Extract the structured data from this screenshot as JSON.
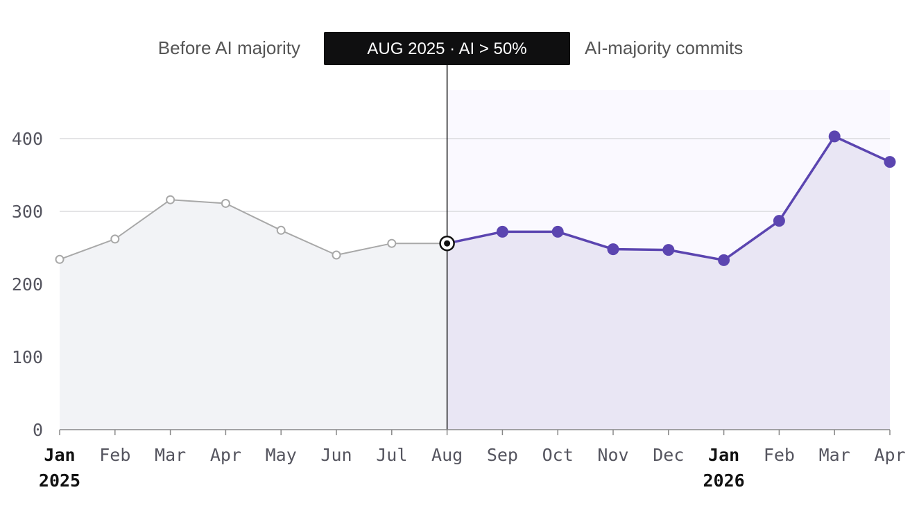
{
  "chart_data": {
    "type": "line",
    "x": [
      "Jan 2025",
      "Feb 2025",
      "Mar 2025",
      "Apr 2025",
      "May 2025",
      "Jun 2025",
      "Jul 2025",
      "Aug 2025",
      "Sep 2025",
      "Oct 2025",
      "Nov 2025",
      "Dec 2025",
      "Jan 2026",
      "Feb 2026",
      "Mar 2026",
      "Apr 2026"
    ],
    "x_tick_labels": [
      "Jan",
      "Feb",
      "Mar",
      "Apr",
      "May",
      "Jun",
      "Jul",
      "Aug",
      "Sep",
      "Oct",
      "Nov",
      "Dec",
      "Jan",
      "Feb",
      "Mar",
      "Apr"
    ],
    "year_labels": [
      {
        "index": 0,
        "label": "2025"
      },
      {
        "index": 12,
        "label": "2026"
      }
    ],
    "values": [
      234,
      262,
      316,
      311,
      274,
      240,
      256,
      256,
      272,
      272,
      248,
      247,
      233,
      287,
      403,
      368
    ],
    "ylim": [
      0,
      450
    ],
    "y_ticks": [
      0,
      100,
      200,
      300,
      400
    ],
    "threshold_index": 7,
    "banner": "AUG 2025 · AI > 50%",
    "region_labels": {
      "before": "Before AI majority",
      "after": "AI-majority commits"
    },
    "colors": {
      "before_line": "#a8a8a8",
      "before_fill": "#f2f3f6",
      "after_line": "#5b45b0",
      "after_fill": "#e9e6f4",
      "after_bg": "#faf9ff",
      "banner_bg": "#0f0f10",
      "grid": "#d4d4d8"
    },
    "grid": true
  }
}
